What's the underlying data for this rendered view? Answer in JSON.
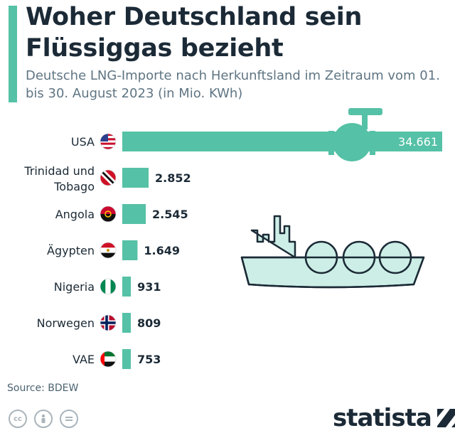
{
  "title": "Woher Deutschland sein Flüssiggas bezieht",
  "subtitle": "Deutsche LNG-Importe nach Herkunftsland im Zeitraum vom 01. bis 30. August 2023 (in Mio. KWh)",
  "source": "Source: BDEW",
  "brand": "statista",
  "colors": {
    "bar": "#55c1a6",
    "ship": "#cdeee6",
    "outline": "#1b2a36",
    "label": "#1b2a36"
  },
  "icons": [
    "cc-icon",
    "person-icon",
    "equals-icon",
    "statista-logo-icon",
    "pipe-valve-icon",
    "lng-tanker-icon"
  ],
  "chart_data": {
    "type": "bar",
    "orientation": "horizontal",
    "categories": [
      "USA",
      "Trinidad und Tobago",
      "Angola",
      "Ägypten",
      "Nigeria",
      "Norwegen",
      "VAE"
    ],
    "values": [
      34661,
      2852,
      2545,
      1649,
      931,
      809,
      753
    ],
    "value_labels": [
      "34.661",
      "2.852",
      "2.545",
      "1.649",
      "931",
      "809",
      "753"
    ],
    "flags": [
      "us",
      "tt",
      "ao",
      "eg",
      "ng",
      "no",
      "ae"
    ],
    "xlim": [
      0,
      34661
    ]
  }
}
